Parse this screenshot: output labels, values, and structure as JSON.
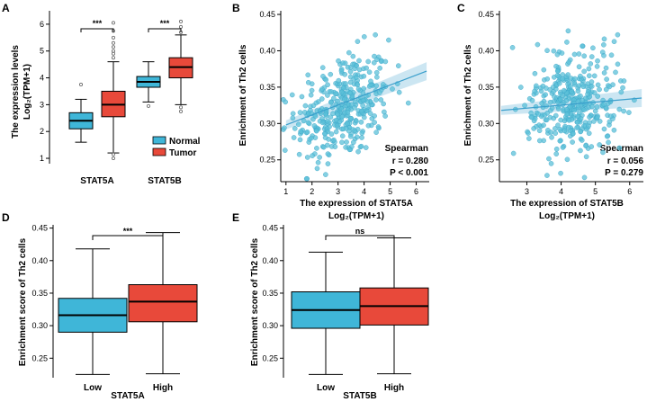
{
  "colors": {
    "normal": "#3fb6d8",
    "tumor": "#e8493a",
    "low": "#3fb6d8",
    "high": "#e8493a",
    "scatter_point": "#5bc0d8",
    "scatter_line": "#3a9fcc",
    "scatter_band": "#bfe0ef"
  },
  "chart_data": [
    {
      "id": "A",
      "type": "box",
      "panel_label": "A",
      "ylabel_line1": "The expression levels",
      "ylabel_line2": "Log₂(TPM+1)",
      "ylim": [
        0.8,
        6.5
      ],
      "yticks": [
        1,
        2,
        3,
        4,
        5,
        6
      ],
      "categories": [
        "STAT5A",
        "STAT5B"
      ],
      "series": [
        {
          "name": "Normal",
          "boxes": [
            {
              "whisker_low": 1.6,
              "q1": 2.1,
              "median": 2.4,
              "q3": 2.7,
              "whisker_high": 3.2,
              "outliers": [
                3.75
              ]
            },
            {
              "whisker_low": 3.1,
              "q1": 3.65,
              "median": 3.85,
              "q3": 4.05,
              "whisker_high": 4.6,
              "outliers": [
                2.95
              ]
            }
          ]
        },
        {
          "name": "Tumor",
          "boxes": [
            {
              "whisker_low": 1.2,
              "q1": 2.55,
              "median": 3.0,
              "q3": 3.5,
              "whisker_high": 4.6,
              "outliers": [
                1.0,
                1.15,
                4.75,
                4.9,
                5.0,
                5.15,
                5.3,
                5.5,
                5.75,
                6.05
              ]
            },
            {
              "whisker_low": 3.0,
              "q1": 4.0,
              "median": 4.4,
              "q3": 4.75,
              "whisker_high": 5.6,
              "outliers": [
                2.9,
                2.75,
                5.7,
                5.9,
                6.1
              ]
            }
          ]
        }
      ],
      "significance": [
        "***",
        "***"
      ],
      "legend": [
        "Normal",
        "Tumor"
      ],
      "legend_position": "bottom-right"
    },
    {
      "id": "B",
      "type": "scatter",
      "panel_label": "B",
      "xlabel_line1": "The expression of STAT5A",
      "xlabel_line2": "Log₂(TPM+1)",
      "ylabel": "Enrichment of Th2 cells",
      "xlim": [
        0.8,
        6.5
      ],
      "ylim": [
        0.22,
        0.455
      ],
      "xticks": [
        1,
        2,
        3,
        4,
        5,
        6
      ],
      "yticks": [
        0.25,
        0.3,
        0.35,
        0.4,
        0.45
      ],
      "regression": {
        "x0": 1.0,
        "y0": 0.298,
        "x1": 6.4,
        "y1": 0.372
      },
      "n_points": 360,
      "point_center_x": 3.2,
      "point_center_y": 0.322,
      "stats": {
        "method": "Spearman",
        "r": "r = 0.280",
        "p": "P < 0.001"
      }
    },
    {
      "id": "C",
      "type": "scatter",
      "panel_label": "C",
      "xlabel_line1": "The expression of STAT5B",
      "xlabel_line2": "Log₂(TPM+1)",
      "ylabel": "Enrichment of Th2 cells",
      "xlim": [
        2.2,
        6.4
      ],
      "ylim": [
        0.22,
        0.455
      ],
      "xticks": [
        3,
        4,
        5,
        6
      ],
      "yticks": [
        0.25,
        0.3,
        0.35,
        0.4,
        0.45
      ],
      "regression": {
        "x0": 2.25,
        "y0": 0.318,
        "x1": 6.35,
        "y1": 0.335
      },
      "n_points": 360,
      "point_center_x": 4.3,
      "point_center_y": 0.326,
      "stats": {
        "method": "Spearman",
        "r": "r = 0.056",
        "p": "P = 0.279"
      }
    },
    {
      "id": "D",
      "type": "box",
      "panel_label": "D",
      "ylabel": "Enrichment score of Th2 cells",
      "xlabel": "STAT5A",
      "ylim": [
        0.22,
        0.455
      ],
      "yticks": [
        0.25,
        0.3,
        0.35,
        0.4,
        0.45
      ],
      "categories": [
        "Low",
        "High"
      ],
      "boxes": [
        {
          "whisker_low": 0.225,
          "q1": 0.29,
          "median": 0.316,
          "q3": 0.342,
          "whisker_high": 0.418
        },
        {
          "whisker_low": 0.226,
          "q1": 0.306,
          "median": 0.337,
          "q3": 0.363,
          "whisker_high": 0.443
        }
      ],
      "significance": "***"
    },
    {
      "id": "E",
      "type": "box",
      "panel_label": "E",
      "ylabel": "Enrichment score of Th2 cells",
      "xlabel": "STAT5B",
      "ylim": [
        0.22,
        0.455
      ],
      "yticks": [
        0.25,
        0.3,
        0.35,
        0.4,
        0.45
      ],
      "categories": [
        "Low",
        "High"
      ],
      "boxes": [
        {
          "whisker_low": 0.225,
          "q1": 0.296,
          "median": 0.324,
          "q3": 0.352,
          "whisker_high": 0.413
        },
        {
          "whisker_low": 0.226,
          "q1": 0.301,
          "median": 0.33,
          "q3": 0.358,
          "whisker_high": 0.435
        }
      ],
      "significance": "ns"
    }
  ]
}
